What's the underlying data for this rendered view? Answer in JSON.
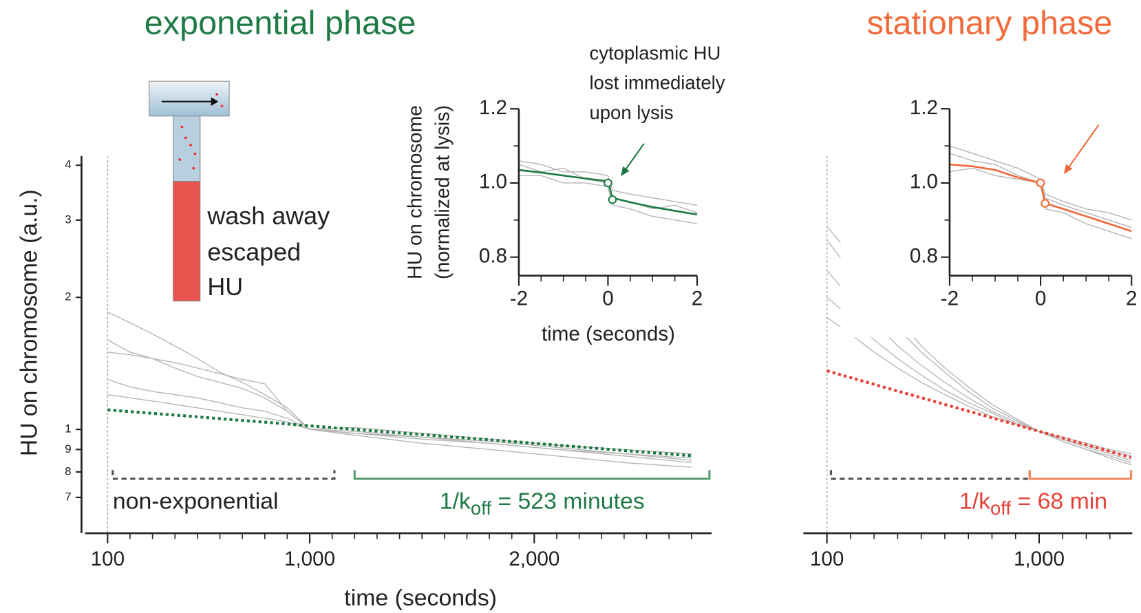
{
  "chart_data": [
    {
      "type": "line",
      "title": "exponential phase",
      "title_color": "#1e7a45",
      "xlabel": "time (seconds)",
      "ylabel": "HU on chromosome (a.u.)",
      "xlim": [
        0,
        2790
      ],
      "xticks": [
        100,
        {
          "value": 1000,
          "label": "1,000"
        },
        {
          "value": 2000,
          "label": "2,000"
        }
      ],
      "xminorticks": [
        200,
        300,
        400,
        500,
        600,
        700,
        800,
        900,
        1100,
        1200,
        1300,
        1400,
        1500,
        1600,
        1700,
        1800,
        1900,
        2100,
        2200,
        2300,
        2400,
        2500,
        2600,
        2700
      ],
      "ylim": [
        0.58,
        4.2
      ],
      "log_y": true,
      "yticks": [
        {
          "value": 0.7,
          "label": "7"
        },
        {
          "value": 0.8,
          "label": "8"
        },
        {
          "value": 0.9,
          "label": "9"
        },
        1,
        2,
        3,
        4
      ],
      "vline": 100,
      "x": [
        100,
        200,
        300,
        400,
        500,
        600,
        700,
        800,
        900,
        1000,
        1200,
        1500,
        1800,
        2100,
        2400,
        2700
      ],
      "series": [
        {
          "color": "#b5b5b5",
          "values": [
            1.85,
            1.75,
            1.65,
            1.55,
            1.45,
            1.35,
            1.28,
            1.2,
            1.12,
            1.0,
            0.98,
            0.95,
            0.93,
            0.9,
            0.87,
            0.84
          ]
        },
        {
          "color": "#b5b5b5",
          "values": [
            1.5,
            1.48,
            1.45,
            1.42,
            1.38,
            1.34,
            1.3,
            1.27,
            1.1,
            1.0,
            0.99,
            0.96,
            0.94,
            0.91,
            0.88,
            0.86
          ]
        },
        {
          "color": "#b5b5b5",
          "values": [
            1.3,
            1.25,
            1.22,
            1.2,
            1.18,
            1.15,
            1.12,
            1.1,
            1.06,
            1.0,
            0.97,
            0.93,
            0.9,
            0.87,
            0.84,
            0.82
          ]
        },
        {
          "color": "#b5b5b5",
          "values": [
            1.6,
            1.5,
            1.45,
            1.38,
            1.32,
            1.28,
            1.24,
            1.18,
            1.1,
            1.0,
            1.01,
            0.98,
            0.95,
            0.92,
            0.9,
            0.88
          ]
        },
        {
          "color": "#b5b5b5",
          "values": [
            1.2,
            1.18,
            1.16,
            1.14,
            1.12,
            1.1,
            1.08,
            1.06,
            1.04,
            1.0,
            0.98,
            0.96,
            0.93,
            0.9,
            0.88,
            0.85
          ]
        },
        {
          "color": "#1e7a45",
          "dotted": true,
          "values": [
            1.108,
            1.098,
            1.088,
            1.078,
            1.068,
            1.058,
            1.048,
            1.039,
            1.029,
            1.019,
            1.0,
            0.973,
            0.947,
            0.921,
            0.895,
            0.871
          ]
        }
      ],
      "brackets": [
        {
          "x": [
            123,
            1110
          ],
          "color": "#555555",
          "dashed": true
        },
        {
          "x": [
            1200,
            2780
          ],
          "color": "#5a9e72",
          "dashed": false
        }
      ],
      "annotations": [
        {
          "text": "non-exponential",
          "color": "#222222"
        },
        {
          "text": "1/k",
          "sub": "off",
          "tail": " = 523 minutes",
          "color": "#1e7a45"
        }
      ]
    },
    {
      "type": "line",
      "xlabel": "time (seconds)",
      "ylabel": [
        "HU on chromosome",
        "(normalized at lysis)"
      ],
      "xlim": [
        -2,
        2
      ],
      "xticks": [
        -2,
        0,
        2
      ],
      "xminorticks": [
        -1.5,
        -1,
        -0.5,
        0.5,
        1,
        1.5
      ],
      "ylim": [
        0.75,
        1.2
      ],
      "yticks": [
        0.8,
        {
          "value": 1,
          "label": "1.0"
        },
        1.2
      ],
      "yminorticks": [
        0.9,
        1.1
      ],
      "x": [
        -2,
        -1.5,
        -1,
        -0.5,
        0,
        0.1,
        0.5,
        1,
        1.5,
        2
      ],
      "series": [
        {
          "color": "#b5b5b5",
          "values": [
            1.05,
            1.03,
            1.04,
            1.01,
            1.0,
            0.96,
            0.95,
            0.93,
            0.94,
            0.92
          ]
        },
        {
          "color": "#b5b5b5",
          "values": [
            1.02,
            1.02,
            1.0,
            1.0,
            0.99,
            0.94,
            0.93,
            0.91,
            0.9,
            0.89
          ]
        },
        {
          "color": "#b5b5b5",
          "values": [
            1.06,
            1.05,
            1.03,
            1.03,
            1.02,
            0.98,
            0.97,
            0.96,
            0.95,
            0.94
          ]
        },
        {
          "color": "#1e7a45",
          "values": [
            1.035,
            1.028,
            1.02,
            1.012,
            1.005,
            0.96,
            0.948,
            0.935,
            0.925,
            0.915
          ]
        }
      ],
      "markers": {
        "color": "#1e7a45",
        "x": [
          0,
          0.1
        ],
        "values": [
          1.0,
          0.955
        ]
      },
      "annotations": [
        "cytoplasmic HU",
        "lost immediately",
        "upon lysis"
      ],
      "arrow_color": "#1e7a45"
    },
    {
      "type": "line",
      "title": "stationary phase",
      "title_color": "#f26a3a",
      "xlim": [
        0,
        1395
      ],
      "xticks": [
        100,
        {
          "value": 1000,
          "label": "1,000"
        }
      ],
      "xminorticks": [
        200,
        300,
        400,
        500,
        600,
        700,
        800,
        900,
        1100,
        1200,
        1300
      ],
      "ylim": [
        0.58,
        4.2
      ],
      "log_y": true,
      "vline": 100,
      "x": [
        100,
        200,
        300,
        400,
        500,
        600,
        700,
        800,
        900,
        1000,
        1100,
        1200,
        1300,
        1390
      ],
      "series": [
        {
          "color": "#b5b5b5",
          "values": [
            2.7,
            2.3,
            1.95,
            1.7,
            1.5,
            1.35,
            1.22,
            1.12,
            1.05,
            0.99,
            0.95,
            0.92,
            0.89,
            0.87
          ]
        },
        {
          "color": "#b5b5b5",
          "values": [
            2.3,
            2.0,
            1.75,
            1.55,
            1.4,
            1.28,
            1.18,
            1.1,
            1.04,
            0.99,
            0.94,
            0.9,
            0.87,
            0.84
          ]
        },
        {
          "color": "#b5b5b5",
          "values": [
            2.0,
            1.8,
            1.6,
            1.45,
            1.33,
            1.23,
            1.15,
            1.09,
            1.03,
            0.99,
            0.96,
            0.93,
            0.9,
            0.88
          ]
        },
        {
          "color": "#b5b5b5",
          "values": [
            1.8,
            1.65,
            1.5,
            1.38,
            1.28,
            1.2,
            1.13,
            1.07,
            1.03,
            0.99,
            0.95,
            0.91,
            0.88,
            0.85
          ]
        },
        {
          "color": "#b5b5b5",
          "values": [
            2.9,
            2.5,
            2.1,
            1.8,
            1.55,
            1.38,
            1.25,
            1.14,
            1.06,
            0.99,
            0.94,
            0.9,
            0.86,
            0.83
          ]
        },
        {
          "color": "#e8413a",
          "dotted": true,
          "values": [
            1.36,
            1.313,
            1.267,
            1.223,
            1.181,
            1.14,
            1.101,
            1.063,
            1.026,
            0.99,
            0.956,
            0.923,
            0.891,
            0.863
          ]
        }
      ],
      "brackets": [
        {
          "x": [
            117,
            960
          ],
          "color": "#555555",
          "dashed": true
        },
        {
          "x": [
            960,
            1390
          ],
          "color": "#f58a5e",
          "dashed": false
        }
      ],
      "annotations": [
        {
          "text": "1/k",
          "sub": "off",
          "tail": " = 68 min",
          "color": "#e8413a"
        }
      ]
    },
    {
      "type": "line",
      "xlim": [
        -2,
        2
      ],
      "xticks": [
        -2,
        0,
        2
      ],
      "xminorticks": [
        -1.5,
        -1,
        -0.5,
        0.5,
        1,
        1.5
      ],
      "ylim": [
        0.75,
        1.2
      ],
      "yticks": [
        0.8,
        {
          "value": 1,
          "label": "1.0"
        },
        1.2
      ],
      "yminorticks": [
        0.9,
        1.1
      ],
      "x": [
        -2,
        -1.5,
        -1,
        -0.5,
        0,
        0.1,
        0.5,
        1,
        1.5,
        2
      ],
      "series": [
        {
          "color": "#b5b5b5",
          "values": [
            1.08,
            1.06,
            1.05,
            1.02,
            1.0,
            0.96,
            0.94,
            0.92,
            0.9,
            0.88
          ]
        },
        {
          "color": "#b5b5b5",
          "values": [
            1.03,
            1.04,
            1.02,
            1.01,
            1.0,
            0.93,
            0.92,
            0.89,
            0.87,
            0.85
          ]
        },
        {
          "color": "#b5b5b5",
          "values": [
            1.1,
            1.08,
            1.06,
            1.04,
            1.01,
            0.97,
            0.95,
            0.93,
            0.92,
            0.9
          ]
        },
        {
          "color": "#f26a3a",
          "values": [
            1.05,
            1.045,
            1.035,
            1.015,
            1.0,
            0.945,
            0.93,
            0.91,
            0.89,
            0.87
          ]
        }
      ],
      "markers": {
        "color": "#f26a3a",
        "x": [
          0,
          0.1
        ],
        "values": [
          1.0,
          0.945
        ]
      },
      "arrow_color": "#f26a3a"
    }
  ],
  "diagram": {
    "label": [
      "wash away",
      "escaped",
      "HU"
    ]
  }
}
